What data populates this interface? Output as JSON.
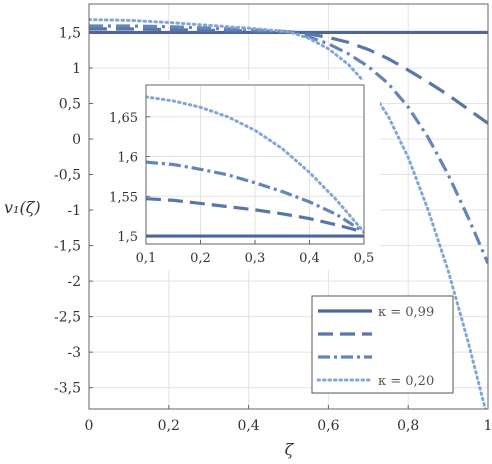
{
  "chart_data": [
    {
      "type": "line",
      "role": "main",
      "xlabel": "ζ",
      "ylabel": "v₁(ζ)",
      "xlim": [
        0,
        1
      ],
      "ylim": [
        -3.8,
        1.9
      ],
      "x_ticks": [
        0,
        0.2,
        0.4,
        0.6,
        0.8,
        1
      ],
      "x_tick_labels": [
        "0",
        "0,2",
        "0,4",
        "0,6",
        "0,8",
        "1"
      ],
      "y_ticks": [
        1.5,
        1,
        0.5,
        0,
        -0.5,
        -1,
        -1.5,
        -2,
        -2.5,
        -3,
        -3.5
      ],
      "y_tick_labels": [
        "1,5",
        "1",
        "0,5",
        "0",
        "-0,5",
        "-1",
        "-1,5",
        "-2",
        "-2,5",
        "-3",
        "-3,5"
      ],
      "grid": true,
      "legend_position": "bottom-right",
      "series": [
        {
          "name": "κ = 0,99",
          "style": "solid",
          "color": "#4f6794",
          "x": [
            0,
            0.1,
            0.2,
            0.3,
            0.4,
            0.5,
            0.6,
            0.7,
            0.8,
            0.9,
            1.0
          ],
          "y": [
            1.5,
            1.5,
            1.5,
            1.5,
            1.5,
            1.5,
            1.5,
            1.5,
            1.5,
            1.5,
            1.5
          ]
        },
        {
          "name": "",
          "style": "dashed",
          "color": "#5877a8",
          "x": [
            0,
            0.1,
            0.2,
            0.3,
            0.4,
            0.5,
            0.55,
            0.6,
            0.65,
            0.7,
            0.75,
            0.8,
            0.85,
            0.9,
            0.95,
            1.0
          ],
          "y": [
            1.55,
            1.55,
            1.54,
            1.53,
            1.52,
            1.51,
            1.48,
            1.43,
            1.36,
            1.26,
            1.13,
            0.97,
            0.8,
            0.62,
            0.42,
            0.22
          ]
        },
        {
          "name": "",
          "style": "dash-dot",
          "color": "#6585b8",
          "x": [
            0,
            0.1,
            0.2,
            0.3,
            0.4,
            0.5,
            0.55,
            0.6,
            0.65,
            0.7,
            0.75,
            0.8,
            0.85,
            0.9,
            0.95,
            1.0
          ],
          "y": [
            1.59,
            1.59,
            1.58,
            1.56,
            1.54,
            1.51,
            1.44,
            1.34,
            1.2,
            1.02,
            0.78,
            0.45,
            0.02,
            -0.5,
            -1.1,
            -1.75
          ]
        },
        {
          "name": "κ = 0,20",
          "style": "dotted",
          "color": "#82a6d8",
          "x": [
            0,
            0.1,
            0.2,
            0.3,
            0.4,
            0.5,
            0.55,
            0.6,
            0.65,
            0.7,
            0.75,
            0.8,
            0.85,
            0.9,
            0.95,
            1.0
          ],
          "y": [
            1.68,
            1.67,
            1.64,
            1.6,
            1.56,
            1.51,
            1.42,
            1.27,
            1.05,
            0.74,
            0.32,
            -0.26,
            -1.0,
            -1.85,
            -2.85,
            -3.95
          ]
        }
      ]
    },
    {
      "type": "line",
      "role": "inset",
      "xlim": [
        0.1,
        0.5
      ],
      "ylim": [
        1.49,
        1.69
      ],
      "x_ticks": [
        0.1,
        0.2,
        0.3,
        0.4,
        0.5
      ],
      "x_tick_labels": [
        "0,1",
        "0,2",
        "0,3",
        "0,4",
        "0,5"
      ],
      "y_ticks": [
        1.5,
        1.55,
        1.6,
        1.65
      ],
      "y_tick_labels": [
        "1,5",
        "1,55",
        "1,6",
        "1,65"
      ],
      "grid": true,
      "series": [
        {
          "style": "solid",
          "color": "#4f6794",
          "x": [
            0.1,
            0.2,
            0.3,
            0.4,
            0.5
          ],
          "y": [
            1.5,
            1.5,
            1.5,
            1.5,
            1.5
          ]
        },
        {
          "style": "dashed",
          "color": "#5877a8",
          "x": [
            0.1,
            0.15,
            0.2,
            0.25,
            0.3,
            0.35,
            0.4,
            0.45,
            0.5
          ],
          "y": [
            1.547,
            1.545,
            1.541,
            1.537,
            1.533,
            1.528,
            1.522,
            1.514,
            1.505
          ]
        },
        {
          "style": "dash-dot",
          "color": "#6585b8",
          "x": [
            0.1,
            0.15,
            0.2,
            0.25,
            0.3,
            0.35,
            0.4,
            0.45,
            0.5
          ],
          "y": [
            1.593,
            1.59,
            1.584,
            1.577,
            1.567,
            1.556,
            1.543,
            1.527,
            1.505
          ]
        },
        {
          "style": "dotted",
          "color": "#82a6d8",
          "x": [
            0.1,
            0.15,
            0.2,
            0.25,
            0.3,
            0.35,
            0.4,
            0.45,
            0.5
          ],
          "y": [
            1.675,
            1.67,
            1.662,
            1.65,
            1.633,
            1.61,
            1.58,
            1.545,
            1.505
          ]
        }
      ]
    }
  ]
}
